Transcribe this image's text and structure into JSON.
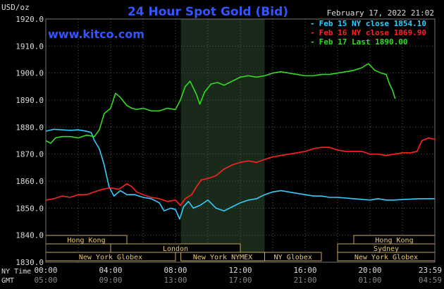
{
  "header": {
    "unit_label": "USD/oz",
    "title": "24 Hour Spot Gold (Bid)",
    "timestamp": "February 17, 2022 21:02",
    "website": "www.kitco.com"
  },
  "legend": [
    {
      "prefix": "-",
      "text": "Feb 15 NY close 1854.10",
      "color": "#33ccff"
    },
    {
      "prefix": "-",
      "text": "Feb 16 NY close 1869.90",
      "color": "#ff2222"
    },
    {
      "prefix": "-",
      "text": "Feb 17 Last 1890.00",
      "color": "#33dd22"
    }
  ],
  "time_axis": {
    "ny_label": "NY Time",
    "gmt_label": "GMT",
    "ny_ticks": [
      "00:00",
      "04:00",
      "08:00",
      "12:00",
      "16:00",
      "20:00",
      "23:59"
    ],
    "gmt_ticks": [
      "05:00",
      "09:00",
      "13:00",
      "17:00",
      "21:00",
      "01:00",
      "04:59"
    ]
  },
  "sessions": [
    {
      "label": "Hong Kong",
      "start": 0,
      "end": 5,
      "row": 0
    },
    {
      "label": "London",
      "start": 4,
      "end": 12,
      "row": 1
    },
    {
      "label": "New York Globex",
      "start": 0,
      "end": 8,
      "row": 2
    },
    {
      "label": "New York NYMEX",
      "start": 8.33,
      "end": 13.5,
      "row": 2
    },
    {
      "label": "NY Globex",
      "start": 13.5,
      "end": 17,
      "row": 2
    },
    {
      "label": "Hong Kong",
      "start": 19,
      "end": 24,
      "row": 0
    },
    {
      "label": "Sydney",
      "start": 18,
      "end": 24,
      "row": 1
    },
    {
      "label": "New York Globex",
      "start": 18,
      "end": 24,
      "row": 2
    }
  ],
  "chart_data": {
    "type": "line",
    "title": "24 Hour Spot Gold (Bid)",
    "ylabel": "USD/oz",
    "xlabel": "NY Time",
    "ylim": [
      1830,
      1920
    ],
    "xlim": [
      0,
      24
    ],
    "y_ticks": [
      "1920.0",
      "1910.0",
      "1900.0",
      "1890.0",
      "1880.0",
      "1870.0",
      "1860.0",
      "1850.0",
      "1840.0",
      "1830.0"
    ],
    "grid": true,
    "shaded_region": [
      8.33,
      13.5
    ],
    "series": [
      {
        "name": "Feb 15 NY close 1854.10",
        "color": "#33ccff",
        "points": [
          [
            0,
            1878.5
          ],
          [
            0.5,
            1879.2
          ],
          [
            1,
            1879.0
          ],
          [
            1.5,
            1878.8
          ],
          [
            2,
            1879.0
          ],
          [
            2.5,
            1878.5
          ],
          [
            2.8,
            1878.0
          ],
          [
            3,
            1875.0
          ],
          [
            3.3,
            1872.0
          ],
          [
            3.6,
            1866.0
          ],
          [
            3.9,
            1858.0
          ],
          [
            4.2,
            1854.5
          ],
          [
            4.6,
            1856.5
          ],
          [
            5,
            1855.0
          ],
          [
            5.5,
            1855.0
          ],
          [
            6,
            1854.0
          ],
          [
            6.5,
            1853.5
          ],
          [
            7,
            1852.0
          ],
          [
            7.3,
            1849.0
          ],
          [
            7.7,
            1850.0
          ],
          [
            8,
            1849.5
          ],
          [
            8.25,
            1846.0
          ],
          [
            8.5,
            1850.5
          ],
          [
            8.8,
            1852.5
          ],
          [
            9.1,
            1850.0
          ],
          [
            9.5,
            1851.0
          ],
          [
            10,
            1853.0
          ],
          [
            10.5,
            1850.0
          ],
          [
            11,
            1849.0
          ],
          [
            11.5,
            1850.5
          ],
          [
            12,
            1852.0
          ],
          [
            12.5,
            1853.0
          ],
          [
            13,
            1853.5
          ],
          [
            13.5,
            1855.0
          ],
          [
            14,
            1856.0
          ],
          [
            14.5,
            1856.5
          ],
          [
            15,
            1856.0
          ],
          [
            15.5,
            1855.5
          ],
          [
            16,
            1855.0
          ],
          [
            16.5,
            1854.5
          ],
          [
            17,
            1854.5
          ],
          [
            17.5,
            1854.0
          ],
          [
            18,
            1854.0
          ],
          [
            19,
            1853.5
          ],
          [
            20,
            1853.0
          ],
          [
            20.5,
            1853.5
          ],
          [
            21,
            1853.0
          ],
          [
            21.5,
            1853.0
          ],
          [
            22,
            1853.2
          ],
          [
            23,
            1853.5
          ],
          [
            24,
            1853.5
          ]
        ]
      },
      {
        "name": "Feb 16 NY close 1869.90",
        "color": "#ff2222",
        "points": [
          [
            0,
            1853.0
          ],
          [
            0.5,
            1853.5
          ],
          [
            1,
            1854.5
          ],
          [
            1.5,
            1854.0
          ],
          [
            2,
            1855.0
          ],
          [
            2.5,
            1855.0
          ],
          [
            3,
            1856.0
          ],
          [
            3.5,
            1857.0
          ],
          [
            4,
            1857.5
          ],
          [
            4.5,
            1857.0
          ],
          [
            5,
            1859.0
          ],
          [
            5.3,
            1858.0
          ],
          [
            5.6,
            1856.0
          ],
          [
            6,
            1855.0
          ],
          [
            6.5,
            1854.0
          ],
          [
            7,
            1853.5
          ],
          [
            7.5,
            1852.5
          ],
          [
            8,
            1853.0
          ],
          [
            8.3,
            1851.0
          ],
          [
            8.6,
            1853.5
          ],
          [
            9,
            1855.0
          ],
          [
            9.3,
            1858.0
          ],
          [
            9.6,
            1860.5
          ],
          [
            10,
            1861.0
          ],
          [
            10.5,
            1862.0
          ],
          [
            11,
            1864.5
          ],
          [
            11.5,
            1866.0
          ],
          [
            12,
            1867.0
          ],
          [
            12.5,
            1867.5
          ],
          [
            13,
            1867.0
          ],
          [
            13.5,
            1868.0
          ],
          [
            14,
            1869.0
          ],
          [
            14.5,
            1869.5
          ],
          [
            15,
            1870.0
          ],
          [
            15.5,
            1870.5
          ],
          [
            16,
            1871.0
          ],
          [
            16.5,
            1872.0
          ],
          [
            17,
            1872.5
          ],
          [
            17.5,
            1872.5
          ],
          [
            18,
            1871.5
          ],
          [
            18.5,
            1871.0
          ],
          [
            19,
            1871.0
          ],
          [
            19.5,
            1871.0
          ],
          [
            20,
            1870.0
          ],
          [
            20.5,
            1870.0
          ],
          [
            21,
            1869.5
          ],
          [
            21.5,
            1870.0
          ],
          [
            22,
            1870.5
          ],
          [
            22.5,
            1870.5
          ],
          [
            22.9,
            1871.0
          ],
          [
            23.2,
            1875.0
          ],
          [
            23.6,
            1876.0
          ],
          [
            24,
            1875.5
          ]
        ]
      },
      {
        "name": "Feb 17 Last 1890.00",
        "color": "#33dd22",
        "points": [
          [
            0,
            1875.0
          ],
          [
            0.3,
            1874.0
          ],
          [
            0.6,
            1876.0
          ],
          [
            1,
            1876.5
          ],
          [
            1.5,
            1876.5
          ],
          [
            2,
            1876.0
          ],
          [
            2.5,
            1877.0
          ],
          [
            3,
            1876.5
          ],
          [
            3.3,
            1879.0
          ],
          [
            3.6,
            1885.0
          ],
          [
            4,
            1887.0
          ],
          [
            4.3,
            1892.5
          ],
          [
            4.6,
            1891.0
          ],
          [
            5,
            1888.0
          ],
          [
            5.3,
            1887.0
          ],
          [
            5.6,
            1886.5
          ],
          [
            6,
            1887.0
          ],
          [
            6.5,
            1886.0
          ],
          [
            7,
            1886.0
          ],
          [
            7.5,
            1887.0
          ],
          [
            8,
            1886.5
          ],
          [
            8.3,
            1890.0
          ],
          [
            8.6,
            1895.0
          ],
          [
            8.9,
            1897.0
          ],
          [
            9.3,
            1892.0
          ],
          [
            9.5,
            1888.5
          ],
          [
            9.8,
            1893.0
          ],
          [
            10.2,
            1896.0
          ],
          [
            10.6,
            1896.5
          ],
          [
            11,
            1895.5
          ],
          [
            11.5,
            1897.0
          ],
          [
            12,
            1898.5
          ],
          [
            12.5,
            1899.0
          ],
          [
            13,
            1898.5
          ],
          [
            13.5,
            1899.0
          ],
          [
            14,
            1900.0
          ],
          [
            14.5,
            1900.5
          ],
          [
            15,
            1900.0
          ],
          [
            15.5,
            1899.5
          ],
          [
            16,
            1899.0
          ],
          [
            16.5,
            1899.0
          ],
          [
            17,
            1899.5
          ],
          [
            17.5,
            1899.5
          ],
          [
            18,
            1900.0
          ],
          [
            18.5,
            1900.5
          ],
          [
            19,
            1901.0
          ],
          [
            19.5,
            1902.0
          ],
          [
            19.9,
            1903.5
          ],
          [
            20.3,
            1901.0
          ],
          [
            20.7,
            1900.0
          ],
          [
            21,
            1899.5
          ],
          [
            21.2,
            1896.0
          ],
          [
            21.4,
            1893.5
          ],
          [
            21.55,
            1890.5
          ]
        ]
      }
    ]
  }
}
